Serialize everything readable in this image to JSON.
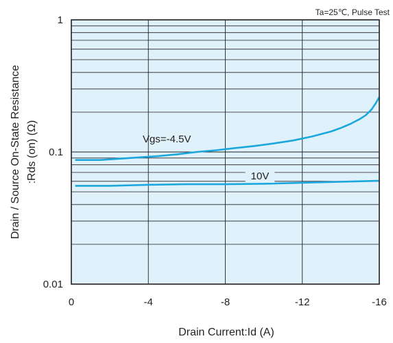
{
  "chart_data": {
    "type": "line",
    "annotation": "Ta=25℃, Pulse Test",
    "xlabel": "Drain Current:Id (A)",
    "ylabel_line1": "Drain / Source On-State Resistance",
    "ylabel_line2": ":Rds (on) (Ω)",
    "x_ticks": [
      "0",
      "-4",
      "-8",
      "-12",
      "-16"
    ],
    "y_ticks": [
      "1",
      "0.1",
      "0.01"
    ],
    "xlim": [
      0,
      -16
    ],
    "ylim": [
      0.01,
      1
    ],
    "y_scale": "log",
    "grid": true,
    "plot_background": "#dff1fa",
    "series_color": "#1aa7dd",
    "series": [
      {
        "name": "Vgs=-4.5V",
        "x": [
          -0.2,
          -1.5,
          -2.5,
          -3.5,
          -4.5,
          -5.5,
          -6.5,
          -7.5,
          -8.5,
          -9.5,
          -10.5,
          -11.5,
          -12.5,
          -13.5,
          -14.0,
          -14.5,
          -15.0,
          -15.3,
          -15.6,
          -15.8,
          -16.0
        ],
        "y": [
          0.087,
          0.087,
          0.089,
          0.091,
          0.093,
          0.096,
          0.1,
          0.103,
          0.107,
          0.111,
          0.116,
          0.122,
          0.131,
          0.143,
          0.152,
          0.163,
          0.178,
          0.19,
          0.21,
          0.232,
          0.26
        ]
      },
      {
        "name": "10V",
        "x": [
          -0.2,
          -2.0,
          -4.0,
          -6.0,
          -8.0,
          -10.0,
          -12.0,
          -14.0,
          -16.0
        ],
        "y": [
          0.0555,
          0.0555,
          0.0565,
          0.057,
          0.057,
          0.0575,
          0.0585,
          0.0595,
          0.0605
        ]
      }
    ]
  }
}
